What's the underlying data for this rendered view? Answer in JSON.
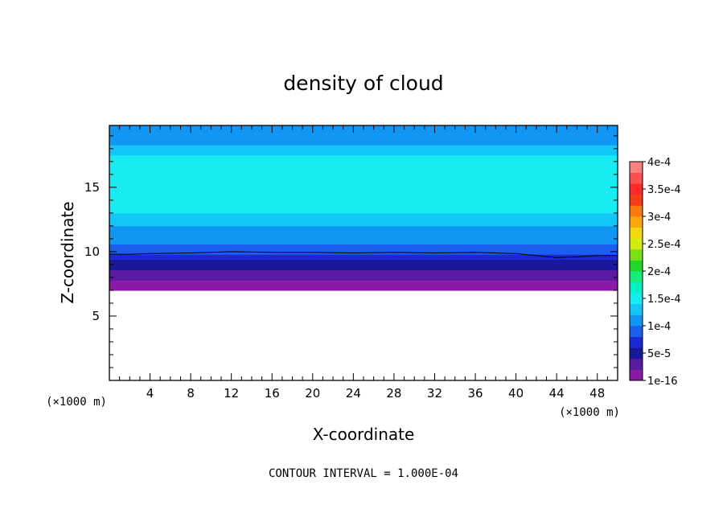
{
  "chart_data": {
    "type": "heatmap",
    "title": "density of cloud",
    "xlabel": "X-coordinate",
    "ylabel": "Z-coordinate",
    "x_unit": "(×1000 m)",
    "z_unit": "(×1000 m)",
    "xlim": [
      0,
      50
    ],
    "ylim": [
      0,
      19.8
    ],
    "x_ticks": [
      4,
      8,
      12,
      16,
      20,
      24,
      28,
      32,
      36,
      40,
      44,
      48
    ],
    "y_ticks": [
      5,
      10,
      15
    ],
    "contour_interval_text": "CONTOUR INTERVAL = 1.000E-04",
    "colorbar": {
      "labels": [
        "4e-4",
        "3.5e-4",
        "3e-4",
        "2.5e-4",
        "2e-4",
        "1.5e-4",
        "1e-4",
        "5e-5",
        "1e-16"
      ],
      "label_values": [
        0.0004,
        0.00035,
        0.0003,
        0.00025,
        0.0002,
        0.00015,
        0.0001,
        5e-05,
        1e-16
      ],
      "colors": [
        "#8a1aa6",
        "#5a1aa0",
        "#18189a",
        "#1c28d6",
        "#1a5ef0",
        "#1296f4",
        "#12c6f8",
        "#18ecf2",
        "#00f2c4",
        "#14ec7e",
        "#24d62a",
        "#7ae212",
        "#d2ec0e",
        "#f2d80e",
        "#fca80a",
        "#fc7a0e",
        "#f83c1a",
        "#fc2a2a",
        "#fc5050",
        "#fc8080"
      ]
    },
    "profile": {
      "z": [
        7.0,
        7.2,
        7.5,
        7.8,
        8.2,
        8.6,
        9.0,
        9.4,
        9.8,
        10.2,
        10.6,
        11.2,
        12.0,
        13.0,
        14.5,
        16.0,
        17.5,
        18.3,
        19.8
      ],
      "value": [
        1.5e-06,
        4e-06,
        1.2e-05,
        2.2e-05,
        3.5e-05,
        4.5e-05,
        5.8e-05,
        7e-05,
        8e-05,
        9e-05,
        0.0001,
        0.00011,
        0.000125,
        0.00014,
        0.000155,
        0.00015,
        0.00013,
        0.000115,
        0.000105
      ]
    },
    "contour_1e-4_z": [
      [
        0,
        9.8
      ],
      [
        2,
        9.8
      ],
      [
        4,
        9.85
      ],
      [
        8,
        9.9
      ],
      [
        12,
        10.0
      ],
      [
        16,
        9.95
      ],
      [
        20,
        9.95
      ],
      [
        24,
        9.9
      ],
      [
        28,
        9.95
      ],
      [
        32,
        9.9
      ],
      [
        36,
        9.95
      ],
      [
        40,
        9.85
      ],
      [
        42,
        9.7
      ],
      [
        44,
        9.55
      ],
      [
        46,
        9.6
      ],
      [
        48,
        9.7
      ],
      [
        50,
        9.7
      ]
    ],
    "cloud_base_z": 7.0
  }
}
